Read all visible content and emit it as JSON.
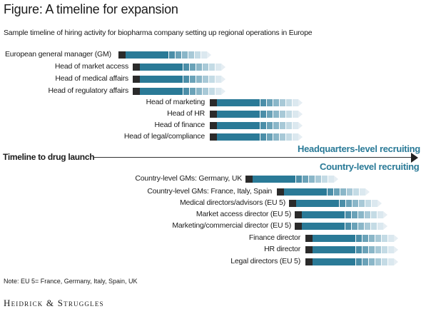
{
  "figure": {
    "title": "Figure: A timeline for expansion",
    "subtitle": "Sample timeline of hiring activity for biopharma company setting up regional operations in Europe"
  },
  "colors": {
    "start_marker": "#2b2b2b",
    "bar": "#2a7a97",
    "fade": [
      "#4b8ea8",
      "#6aa2b8",
      "#8ab6c8",
      "#a8c9d7",
      "#c4dbe5",
      "#dbe8ef"
    ],
    "phase_text": "#2a7a97"
  },
  "timeline": {
    "axis_label": "Timeline to drug launch",
    "hq_phase": "Headquarters-level recruiting",
    "country_phase": "Country-level recruiting"
  },
  "hq_roles": [
    "European general manager (GM)",
    "Head of market access",
    "Head of medical affairs",
    "Head of regulatory affairs",
    "Head of marketing",
    "Head of HR",
    "Head of finance",
    "Head of legal/compliance"
  ],
  "country_roles": [
    "Country-level GMs: Germany, UK",
    "Country-level GMs: France, Italy, Spain",
    "Medical directors/advisors (EU 5)",
    "Market access director (EU 5)",
    "Marketing/commercial director (EU 5)",
    "Finance director",
    "HR director",
    "Legal directors (EU 5)"
  ],
  "note": "Note: EU 5= France, Germany, Italy, Spain, UK",
  "brand": "Heidrick & Struggles"
}
